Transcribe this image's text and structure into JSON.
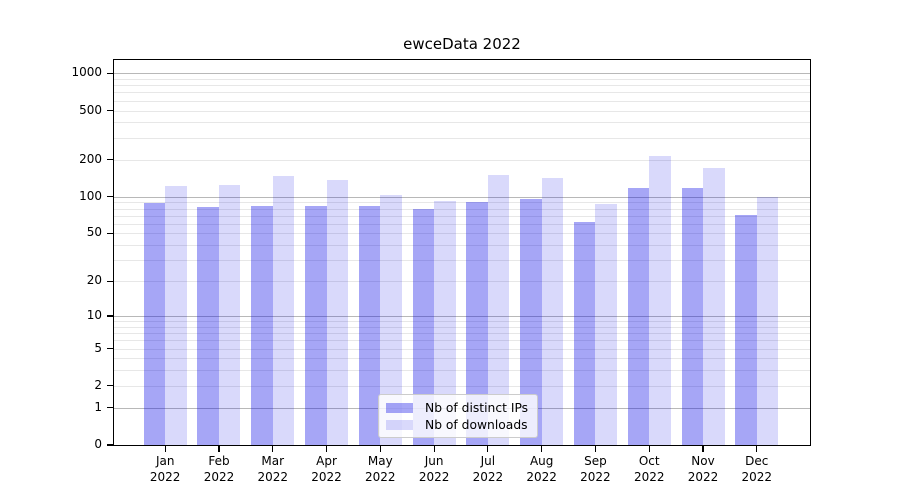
{
  "chart_data": {
    "type": "bar",
    "title": "ewceData 2022",
    "months": [
      "Jan",
      "Feb",
      "Mar",
      "Apr",
      "May",
      "Jun",
      "Jul",
      "Aug",
      "Sep",
      "Oct",
      "Nov",
      "Dec"
    ],
    "year": "2022",
    "categories": [
      "Jan 2022",
      "Feb 2022",
      "Mar 2022",
      "Apr 2022",
      "May 2022",
      "Jun 2022",
      "Jul 2022",
      "Aug 2022",
      "Sep 2022",
      "Oct 2022",
      "Nov 2022",
      "Dec 2022"
    ],
    "series": [
      {
        "name": "Nb of distinct IPs",
        "color": "#0000e6",
        "alpha": 0.35,
        "values": [
          88,
          82,
          84,
          84,
          84,
          79,
          90,
          95,
          62,
          118,
          117,
          71
        ]
      },
      {
        "name": "Nb of downloads",
        "color": "#0000e6",
        "alpha": 0.15,
        "values": [
          123,
          125,
          147,
          137,
          103,
          92,
          150,
          141,
          87,
          214,
          172,
          100
        ]
      }
    ],
    "xlabel": "",
    "ylabel": "",
    "scale": "log1p",
    "ylim": [
      0,
      1280
    ],
    "yticks": [
      1000,
      500,
      200,
      100,
      50,
      20,
      10,
      5,
      2,
      1,
      0
    ],
    "major_gridlines": [
      1,
      10,
      100,
      1000
    ],
    "minor_gridlines": [
      2,
      3,
      4,
      5,
      6,
      7,
      8,
      9,
      20,
      30,
      40,
      50,
      60,
      70,
      80,
      90,
      200,
      300,
      400,
      500,
      600,
      700,
      800,
      900
    ],
    "grid": true,
    "legend_position": "lower center",
    "grid_major_color": "#b8b8b8",
    "grid_minor_color": "#e7e7e7"
  }
}
